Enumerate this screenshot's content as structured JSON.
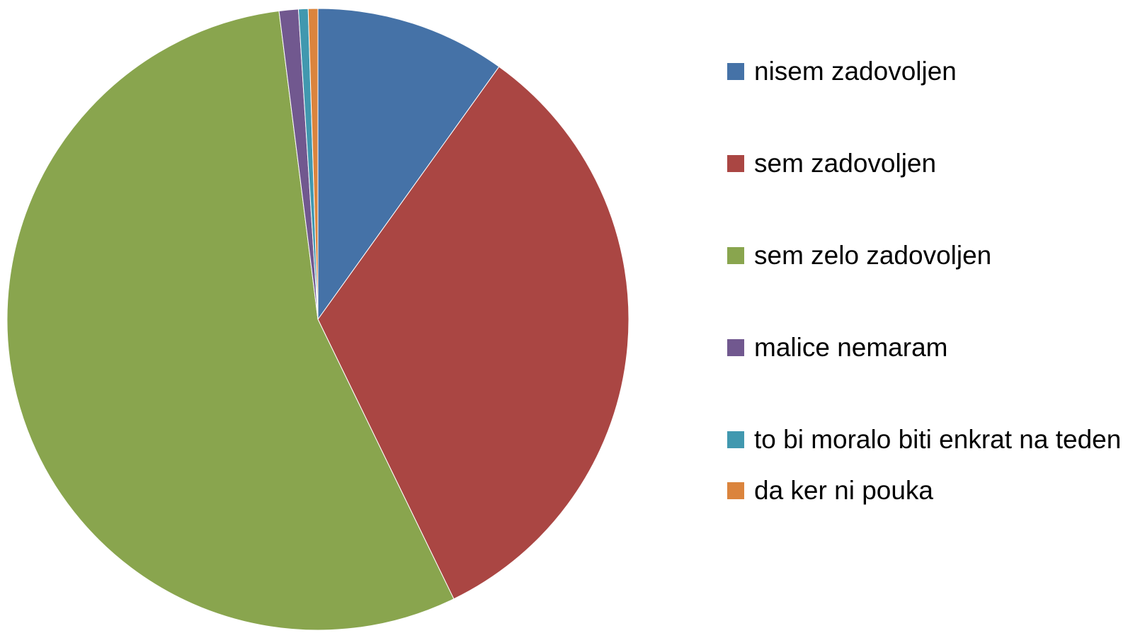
{
  "chart_data": {
    "type": "pie",
    "categories": [
      "nisem zadovoljen",
      "sem zadovoljen",
      "sem zelo zadovoljen",
      "malice nemaram",
      "to bi moralo biti enkrat na teden",
      "da ker ni pouka"
    ],
    "values": [
      9.9,
      32.9,
      55.2,
      1.0,
      0.5,
      0.5
    ],
    "colors": [
      "#4572a7",
      "#aa4643",
      "#89a54e",
      "#71588f",
      "#4198af",
      "#db843d"
    ],
    "legend": "right"
  }
}
